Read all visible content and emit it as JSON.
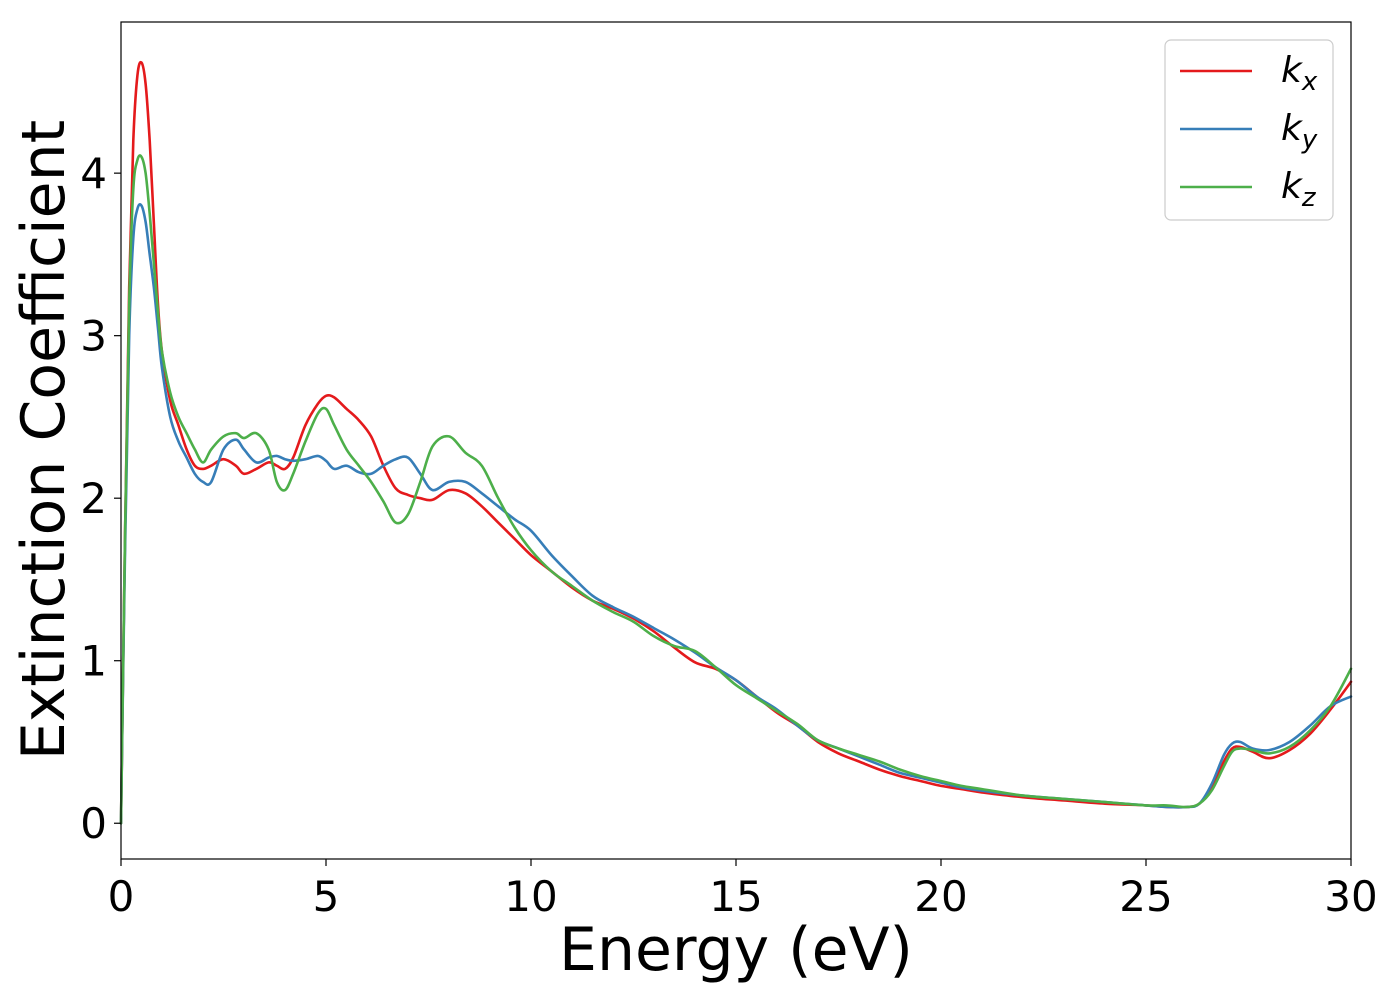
{
  "chart_data": {
    "type": "line",
    "xlabel": "Energy (eV)",
    "ylabel": "Extinction Coefficient",
    "xlim": [
      0,
      30
    ],
    "ylim": [
      -0.22,
      4.93
    ],
    "xticks": [
      0,
      5,
      10,
      15,
      20,
      25,
      30
    ],
    "yticks": [
      0,
      1,
      2,
      3,
      4
    ],
    "grid": false,
    "legend_position": "top-right",
    "series": [
      {
        "name": "k_x",
        "label_base": "k",
        "label_sub": "x",
        "color": "#e41a1c",
        "x": [
          0,
          0.1,
          0.2,
          0.3,
          0.4,
          0.5,
          0.6,
          0.7,
          0.8,
          0.9,
          1.0,
          1.2,
          1.4,
          1.6,
          1.8,
          2.0,
          2.2,
          2.5,
          2.8,
          3.0,
          3.3,
          3.6,
          3.8,
          4.0,
          4.2,
          4.5,
          4.8,
          5.0,
          5.2,
          5.5,
          5.8,
          6.1,
          6.4,
          6.7,
          7.0,
          7.3,
          7.6,
          8.0,
          8.4,
          8.8,
          9.2,
          9.6,
          10.0,
          10.5,
          11.0,
          11.5,
          12.0,
          12.5,
          13.0,
          13.5,
          14.0,
          14.5,
          15.0,
          15.5,
          16.0,
          16.5,
          17.0,
          17.5,
          18.0,
          18.5,
          19.0,
          19.5,
          20.0,
          20.5,
          21.0,
          22.0,
          23.0,
          24.0,
          25.0,
          25.5,
          26.0,
          26.3,
          26.6,
          26.9,
          27.1,
          27.3,
          27.6,
          28.0,
          28.5,
          29.0,
          29.5,
          30.0
        ],
        "values": [
          0.0,
          1.8,
          3.3,
          4.2,
          4.6,
          4.68,
          4.55,
          4.2,
          3.7,
          3.2,
          2.9,
          2.6,
          2.45,
          2.3,
          2.2,
          2.18,
          2.2,
          2.24,
          2.2,
          2.15,
          2.18,
          2.22,
          2.2,
          2.18,
          2.25,
          2.45,
          2.58,
          2.63,
          2.62,
          2.55,
          2.48,
          2.38,
          2.2,
          2.06,
          2.02,
          2.0,
          1.99,
          2.05,
          2.03,
          1.95,
          1.85,
          1.75,
          1.65,
          1.55,
          1.45,
          1.37,
          1.32,
          1.26,
          1.18,
          1.08,
          0.99,
          0.95,
          0.88,
          0.78,
          0.68,
          0.6,
          0.5,
          0.43,
          0.38,
          0.33,
          0.29,
          0.26,
          0.23,
          0.21,
          0.19,
          0.16,
          0.14,
          0.12,
          0.11,
          0.1,
          0.1,
          0.12,
          0.22,
          0.38,
          0.46,
          0.47,
          0.44,
          0.4,
          0.45,
          0.55,
          0.7,
          0.87
        ]
      },
      {
        "name": "k_y",
        "label_base": "k",
        "label_sub": "y",
        "color": "#377eb8",
        "x": [
          0,
          0.1,
          0.2,
          0.3,
          0.4,
          0.5,
          0.6,
          0.7,
          0.8,
          0.9,
          1.0,
          1.2,
          1.4,
          1.6,
          1.8,
          2.0,
          2.2,
          2.5,
          2.8,
          3.0,
          3.3,
          3.6,
          3.8,
          4.0,
          4.2,
          4.5,
          4.8,
          5.0,
          5.2,
          5.5,
          5.8,
          6.1,
          6.4,
          6.7,
          7.0,
          7.3,
          7.6,
          8.0,
          8.4,
          8.8,
          9.2,
          9.6,
          10.0,
          10.5,
          11.0,
          11.5,
          12.0,
          12.5,
          13.0,
          13.5,
          14.0,
          14.5,
          15.0,
          15.5,
          16.0,
          16.5,
          17.0,
          17.5,
          18.0,
          18.5,
          19.0,
          19.5,
          20.0,
          20.5,
          21.0,
          22.0,
          23.0,
          24.0,
          25.0,
          25.5,
          26.0,
          26.3,
          26.6,
          26.9,
          27.1,
          27.3,
          27.6,
          28.0,
          28.5,
          29.0,
          29.5,
          30.0
        ],
        "values": [
          0.0,
          1.7,
          3.0,
          3.6,
          3.78,
          3.8,
          3.7,
          3.5,
          3.3,
          3.05,
          2.8,
          2.5,
          2.35,
          2.25,
          2.15,
          2.1,
          2.1,
          2.3,
          2.36,
          2.3,
          2.22,
          2.25,
          2.26,
          2.24,
          2.23,
          2.24,
          2.26,
          2.23,
          2.18,
          2.2,
          2.16,
          2.15,
          2.2,
          2.24,
          2.25,
          2.15,
          2.05,
          2.1,
          2.1,
          2.03,
          1.95,
          1.87,
          1.8,
          1.65,
          1.52,
          1.4,
          1.33,
          1.27,
          1.2,
          1.13,
          1.05,
          0.96,
          0.88,
          0.78,
          0.7,
          0.6,
          0.51,
          0.46,
          0.41,
          0.36,
          0.31,
          0.28,
          0.25,
          0.22,
          0.2,
          0.17,
          0.15,
          0.13,
          0.11,
          0.1,
          0.1,
          0.12,
          0.24,
          0.42,
          0.49,
          0.5,
          0.46,
          0.45,
          0.5,
          0.6,
          0.72,
          0.78
        ]
      },
      {
        "name": "k_z",
        "label_base": "k",
        "label_sub": "z",
        "color": "#4daf4a",
        "x": [
          0,
          0.1,
          0.2,
          0.3,
          0.4,
          0.5,
          0.6,
          0.7,
          0.8,
          0.9,
          1.0,
          1.2,
          1.4,
          1.6,
          1.8,
          2.0,
          2.2,
          2.5,
          2.8,
          3.0,
          3.3,
          3.6,
          3.8,
          4.0,
          4.2,
          4.5,
          4.8,
          5.0,
          5.2,
          5.5,
          5.8,
          6.1,
          6.4,
          6.7,
          7.0,
          7.3,
          7.6,
          8.0,
          8.4,
          8.8,
          9.2,
          9.6,
          10.0,
          10.5,
          11.0,
          11.5,
          12.0,
          12.5,
          13.0,
          13.5,
          14.0,
          14.5,
          15.0,
          15.5,
          16.0,
          16.5,
          17.0,
          17.5,
          18.0,
          18.5,
          19.0,
          19.5,
          20.0,
          20.5,
          21.0,
          22.0,
          23.0,
          24.0,
          25.0,
          25.5,
          26.0,
          26.3,
          26.6,
          26.9,
          27.1,
          27.3,
          27.6,
          28.0,
          28.5,
          29.0,
          29.5,
          30.0
        ],
        "values": [
          0.0,
          1.8,
          3.2,
          3.9,
          4.08,
          4.1,
          4.0,
          3.75,
          3.45,
          3.15,
          2.9,
          2.65,
          2.5,
          2.4,
          2.3,
          2.22,
          2.3,
          2.38,
          2.4,
          2.37,
          2.4,
          2.3,
          2.1,
          2.05,
          2.15,
          2.35,
          2.52,
          2.55,
          2.45,
          2.3,
          2.2,
          2.1,
          1.98,
          1.85,
          1.9,
          2.1,
          2.32,
          2.38,
          2.28,
          2.2,
          2.0,
          1.82,
          1.68,
          1.55,
          1.46,
          1.37,
          1.3,
          1.24,
          1.15,
          1.09,
          1.06,
          0.96,
          0.85,
          0.77,
          0.69,
          0.61,
          0.51,
          0.46,
          0.42,
          0.38,
          0.33,
          0.29,
          0.26,
          0.23,
          0.21,
          0.17,
          0.15,
          0.13,
          0.11,
          0.11,
          0.1,
          0.12,
          0.2,
          0.35,
          0.44,
          0.46,
          0.45,
          0.43,
          0.47,
          0.57,
          0.72,
          0.95
        ]
      }
    ]
  }
}
